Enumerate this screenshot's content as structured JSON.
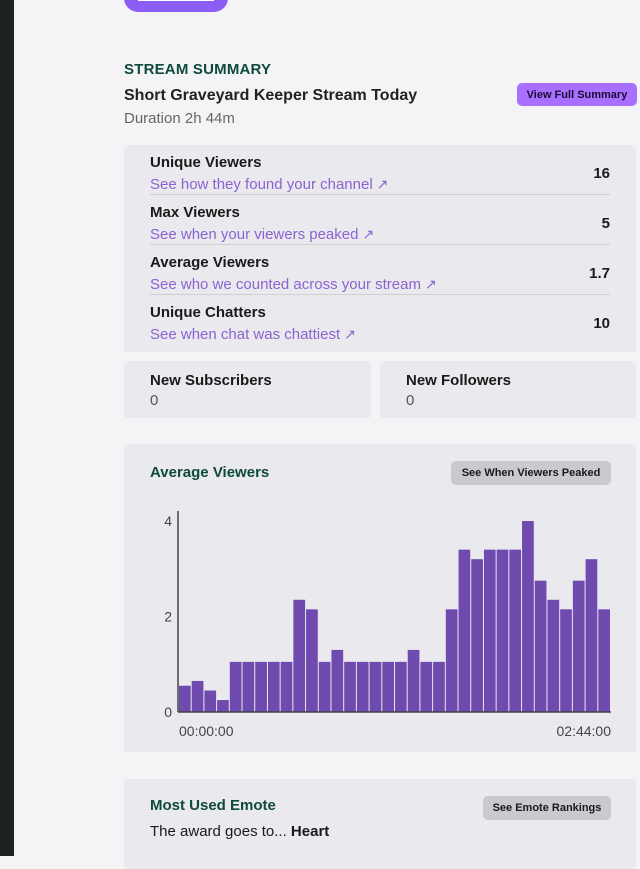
{
  "summary": {
    "section_title": "STREAM SUMMARY",
    "stream_title": "Short Graveyard Keeper Stream Today",
    "duration": "Duration 2h 44m",
    "view_full_label": "View Full Summary"
  },
  "stats": [
    {
      "label": "Unique Viewers",
      "link": "See how they found your channel",
      "value": "16"
    },
    {
      "label": "Max Viewers",
      "link": "See when your viewers peaked",
      "value": "5"
    },
    {
      "label": "Average Viewers",
      "link": "See who we counted across your stream",
      "value": "1.7"
    },
    {
      "label": "Unique Chatters",
      "link": "See when chat was chattiest",
      "value": "10"
    }
  ],
  "subs": {
    "label": "New Subscribers",
    "value": "0"
  },
  "followers": {
    "label": "New Followers",
    "value": "0"
  },
  "avg_chart": {
    "heading": "Average Viewers",
    "button_label": "See When Viewers Peaked"
  },
  "chart_data": {
    "type": "bar",
    "title": "",
    "xlabel": "",
    "ylabel": "",
    "ylim": [
      0,
      4
    ],
    "yticks": [
      "0",
      "2",
      "4"
    ],
    "xtick_labels": [
      "00:00:00",
      "02:44:00"
    ],
    "bar_color": "#6f4bb0",
    "values": [
      0.55,
      0.65,
      0.45,
      0.25,
      1.05,
      1.05,
      1.05,
      1.05,
      1.05,
      2.35,
      2.15,
      1.05,
      1.3,
      1.05,
      1.05,
      1.05,
      1.05,
      1.05,
      1.3,
      1.05,
      1.05,
      2.15,
      3.4,
      3.2,
      3.4,
      3.4,
      3.4,
      4.0,
      2.75,
      2.35,
      2.15,
      2.75,
      3.2,
      2.15
    ]
  },
  "emote": {
    "heading": "Most Used Emote",
    "button_label": "See Emote Rankings",
    "prefix": "The award goes to...",
    "name": "Heart"
  },
  "colors": {
    "accent": "#a970ff",
    "link": "#8a63d2",
    "heading_green": "#0e4a3a"
  }
}
